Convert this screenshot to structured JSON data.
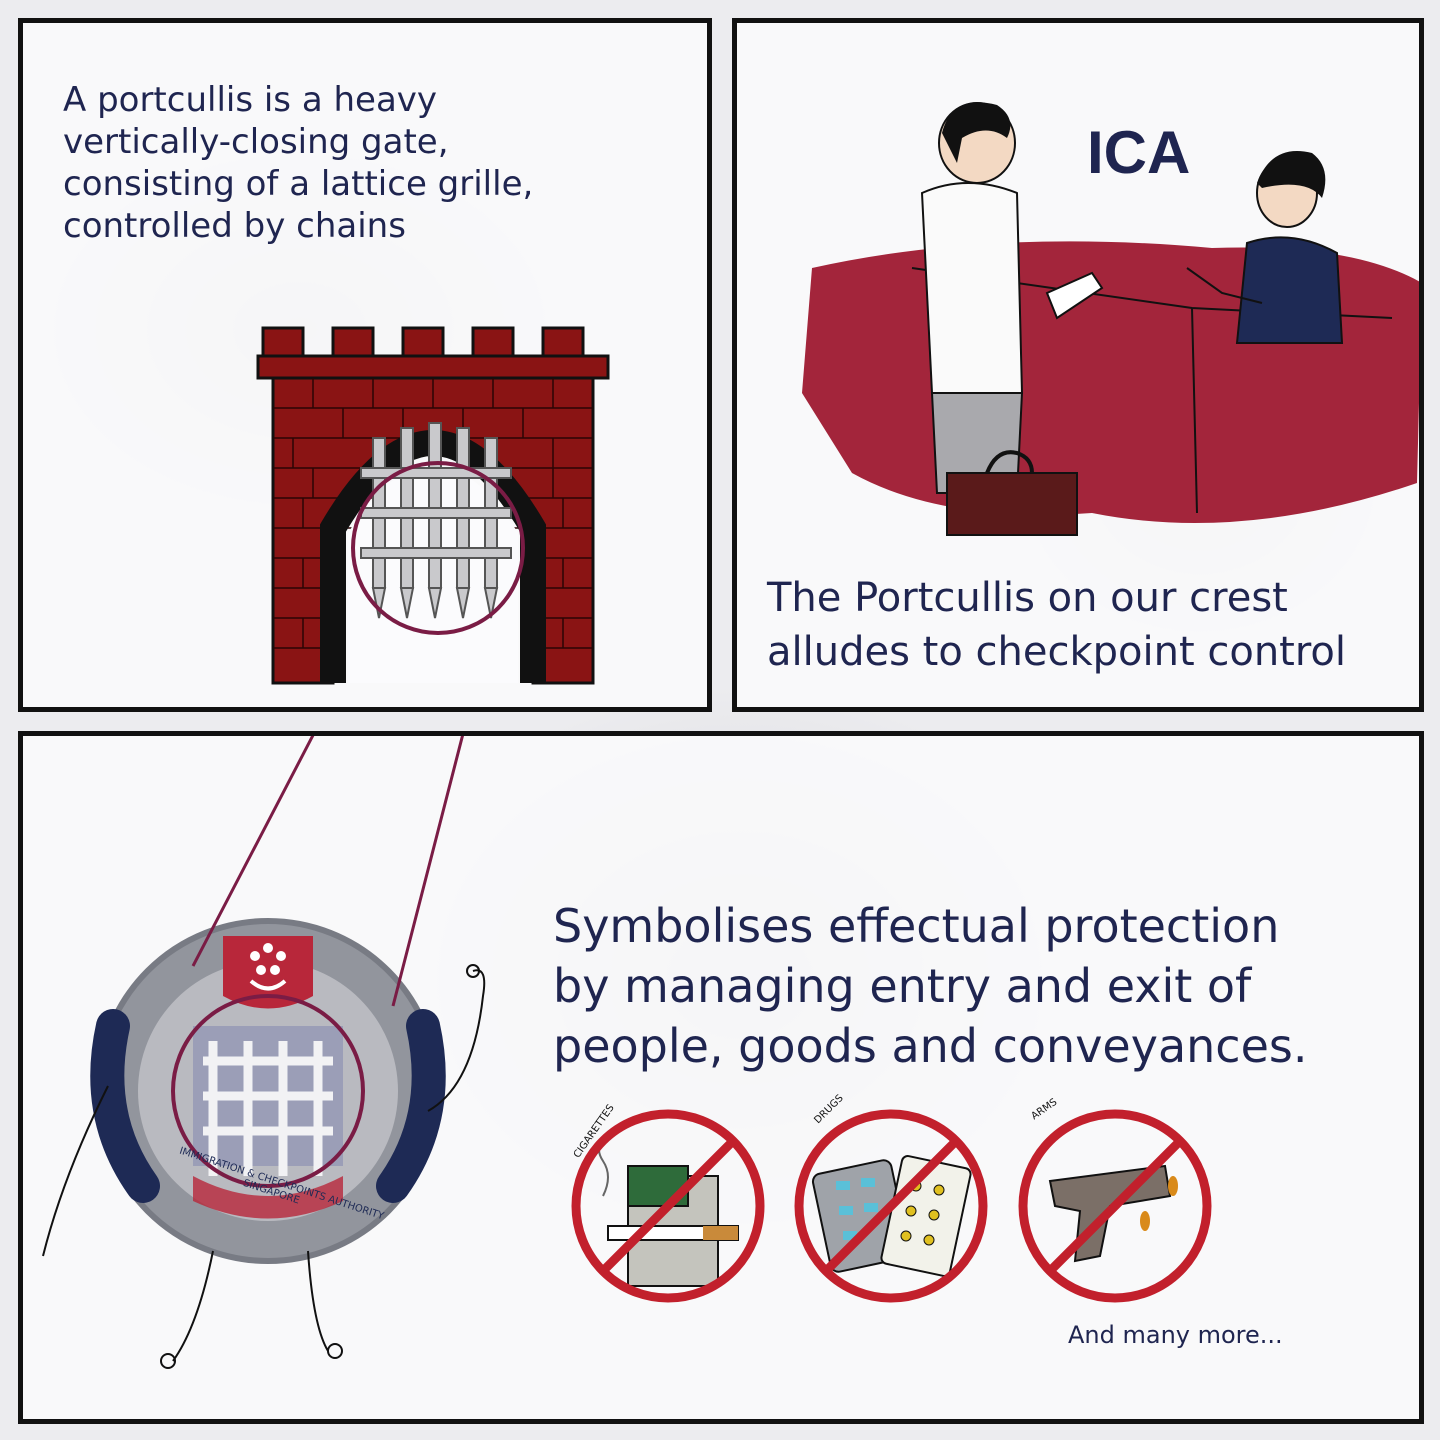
{
  "panel_top_left": {
    "text_lines": [
      "A portcullis is a heavy",
      "vertically-closing gate,",
      "consisting of a lattice grille,",
      "controlled by chains"
    ]
  },
  "panel_top_right": {
    "sign": "ICA",
    "caption_lines": [
      "The Portcullis on our crest",
      "alludes to checkpoint control"
    ]
  },
  "panel_bottom": {
    "text_lines": [
      "Symbolises effectual protection",
      "by managing entry and exit of",
      "people, goods and conveyances."
    ],
    "crest_lines": [
      "IMMIGRATION & CHECKPOINTS AUTHORITY",
      "SINGAPORE"
    ],
    "prohibited": [
      {
        "label": "CIGARETTES",
        "icon": "cigarette-icon"
      },
      {
        "label": "DRUGS",
        "icon": "pills-icon"
      },
      {
        "label": "ARMS",
        "icon": "gun-icon"
      }
    ],
    "footer": "And many more..."
  },
  "colors": {
    "ink": "#1f2550",
    "brick": "#8a1414",
    "counter": "#a3253b",
    "prohibit": "#c2202c",
    "crest_navy": "#1e2a55",
    "crest_red": "#b8273a"
  }
}
